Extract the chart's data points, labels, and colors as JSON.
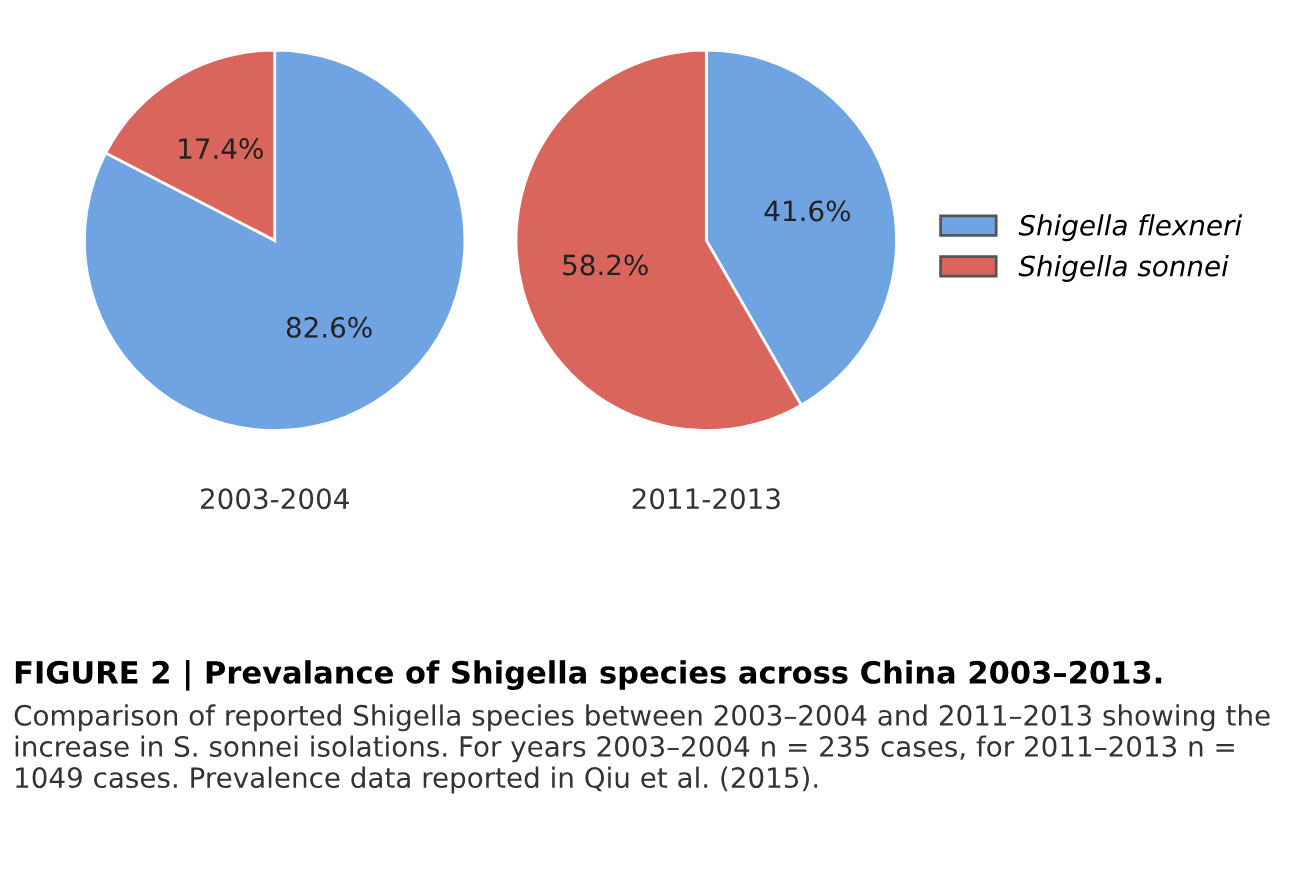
{
  "chart_data": [
    {
      "type": "pie",
      "xlabel": "2003-2004",
      "categories": [
        "Shigella flexneri",
        "Shigella sonnei"
      ],
      "values": [
        82.6,
        17.4
      ],
      "colors": [
        "#6fa3e2",
        "#d9655d"
      ],
      "value_labels": [
        "82.6%",
        "17.4%"
      ],
      "legend": "right"
    },
    {
      "type": "pie",
      "xlabel": "2011-2013",
      "categories": [
        null,
        null
      ],
      "values": [
        41.6,
        58.2
      ],
      "colors": [
        "#6fa3e2",
        "#d9655d"
      ],
      "value_labels": [
        "41.6%",
        "58.2%"
      ],
      "annotations": [
        "FIGURE 2 | Prevalance of Shigella species across China 2003–2013.",
        "Comparison of reported Shigella species between 2003–2004 and 2011–2013 showing the increase in S. sonnei isolations. For years 2003–2004 n = 235 cases, for 2011–2013 n = 1049 cases. Prevalence data reported in Qiu et al. (2015)."
      ]
    }
  ]
}
